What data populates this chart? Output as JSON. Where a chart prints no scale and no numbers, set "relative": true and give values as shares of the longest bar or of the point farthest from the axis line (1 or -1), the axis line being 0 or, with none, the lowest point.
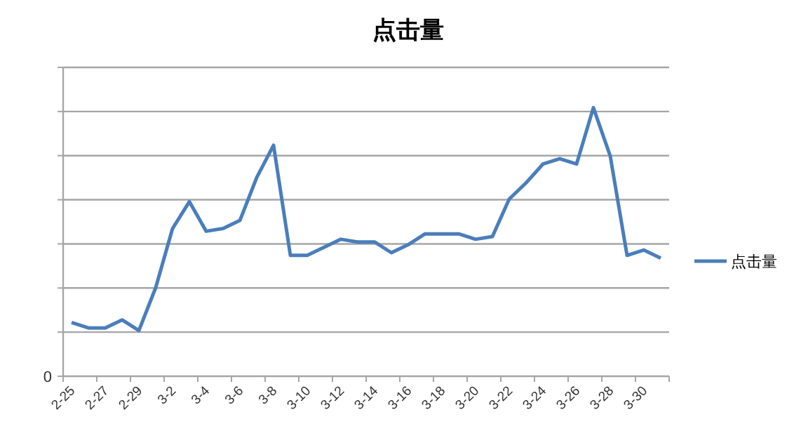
{
  "chart_data": {
    "type": "line",
    "title": "点击量",
    "relative": true,
    "categories": [
      "2-25",
      null,
      "2-27",
      null,
      "2-29",
      null,
      "3-2",
      null,
      "3-4",
      null,
      "3-6",
      null,
      "3-8",
      null,
      "3-10",
      null,
      "3-12",
      null,
      "3-14",
      null,
      "3-16",
      null,
      "3-18",
      null,
      "3-20",
      null,
      "3-22",
      null,
      "3-24",
      null,
      "3-26",
      null,
      "3-28",
      null,
      "3-30",
      null
    ],
    "series": [
      {
        "name": "点击量",
        "color": "#4a7ebb",
        "values": [
          0.2,
          0.18,
          0.18,
          0.21,
          0.17,
          0.33,
          0.55,
          0.65,
          0.54,
          0.55,
          0.58,
          0.74,
          0.86,
          0.45,
          0.45,
          0.48,
          0.51,
          0.5,
          0.5,
          0.46,
          0.49,
          0.53,
          0.53,
          0.53,
          0.51,
          0.52,
          0.66,
          0.72,
          0.79,
          0.81,
          0.79,
          1,
          0.82,
          0.45,
          0.47,
          0.44
        ]
      }
    ],
    "annotations": [
      "0"
    ],
    "grid": "y",
    "legend": "right",
    "marker": "none",
    "line_style": "solid"
  }
}
